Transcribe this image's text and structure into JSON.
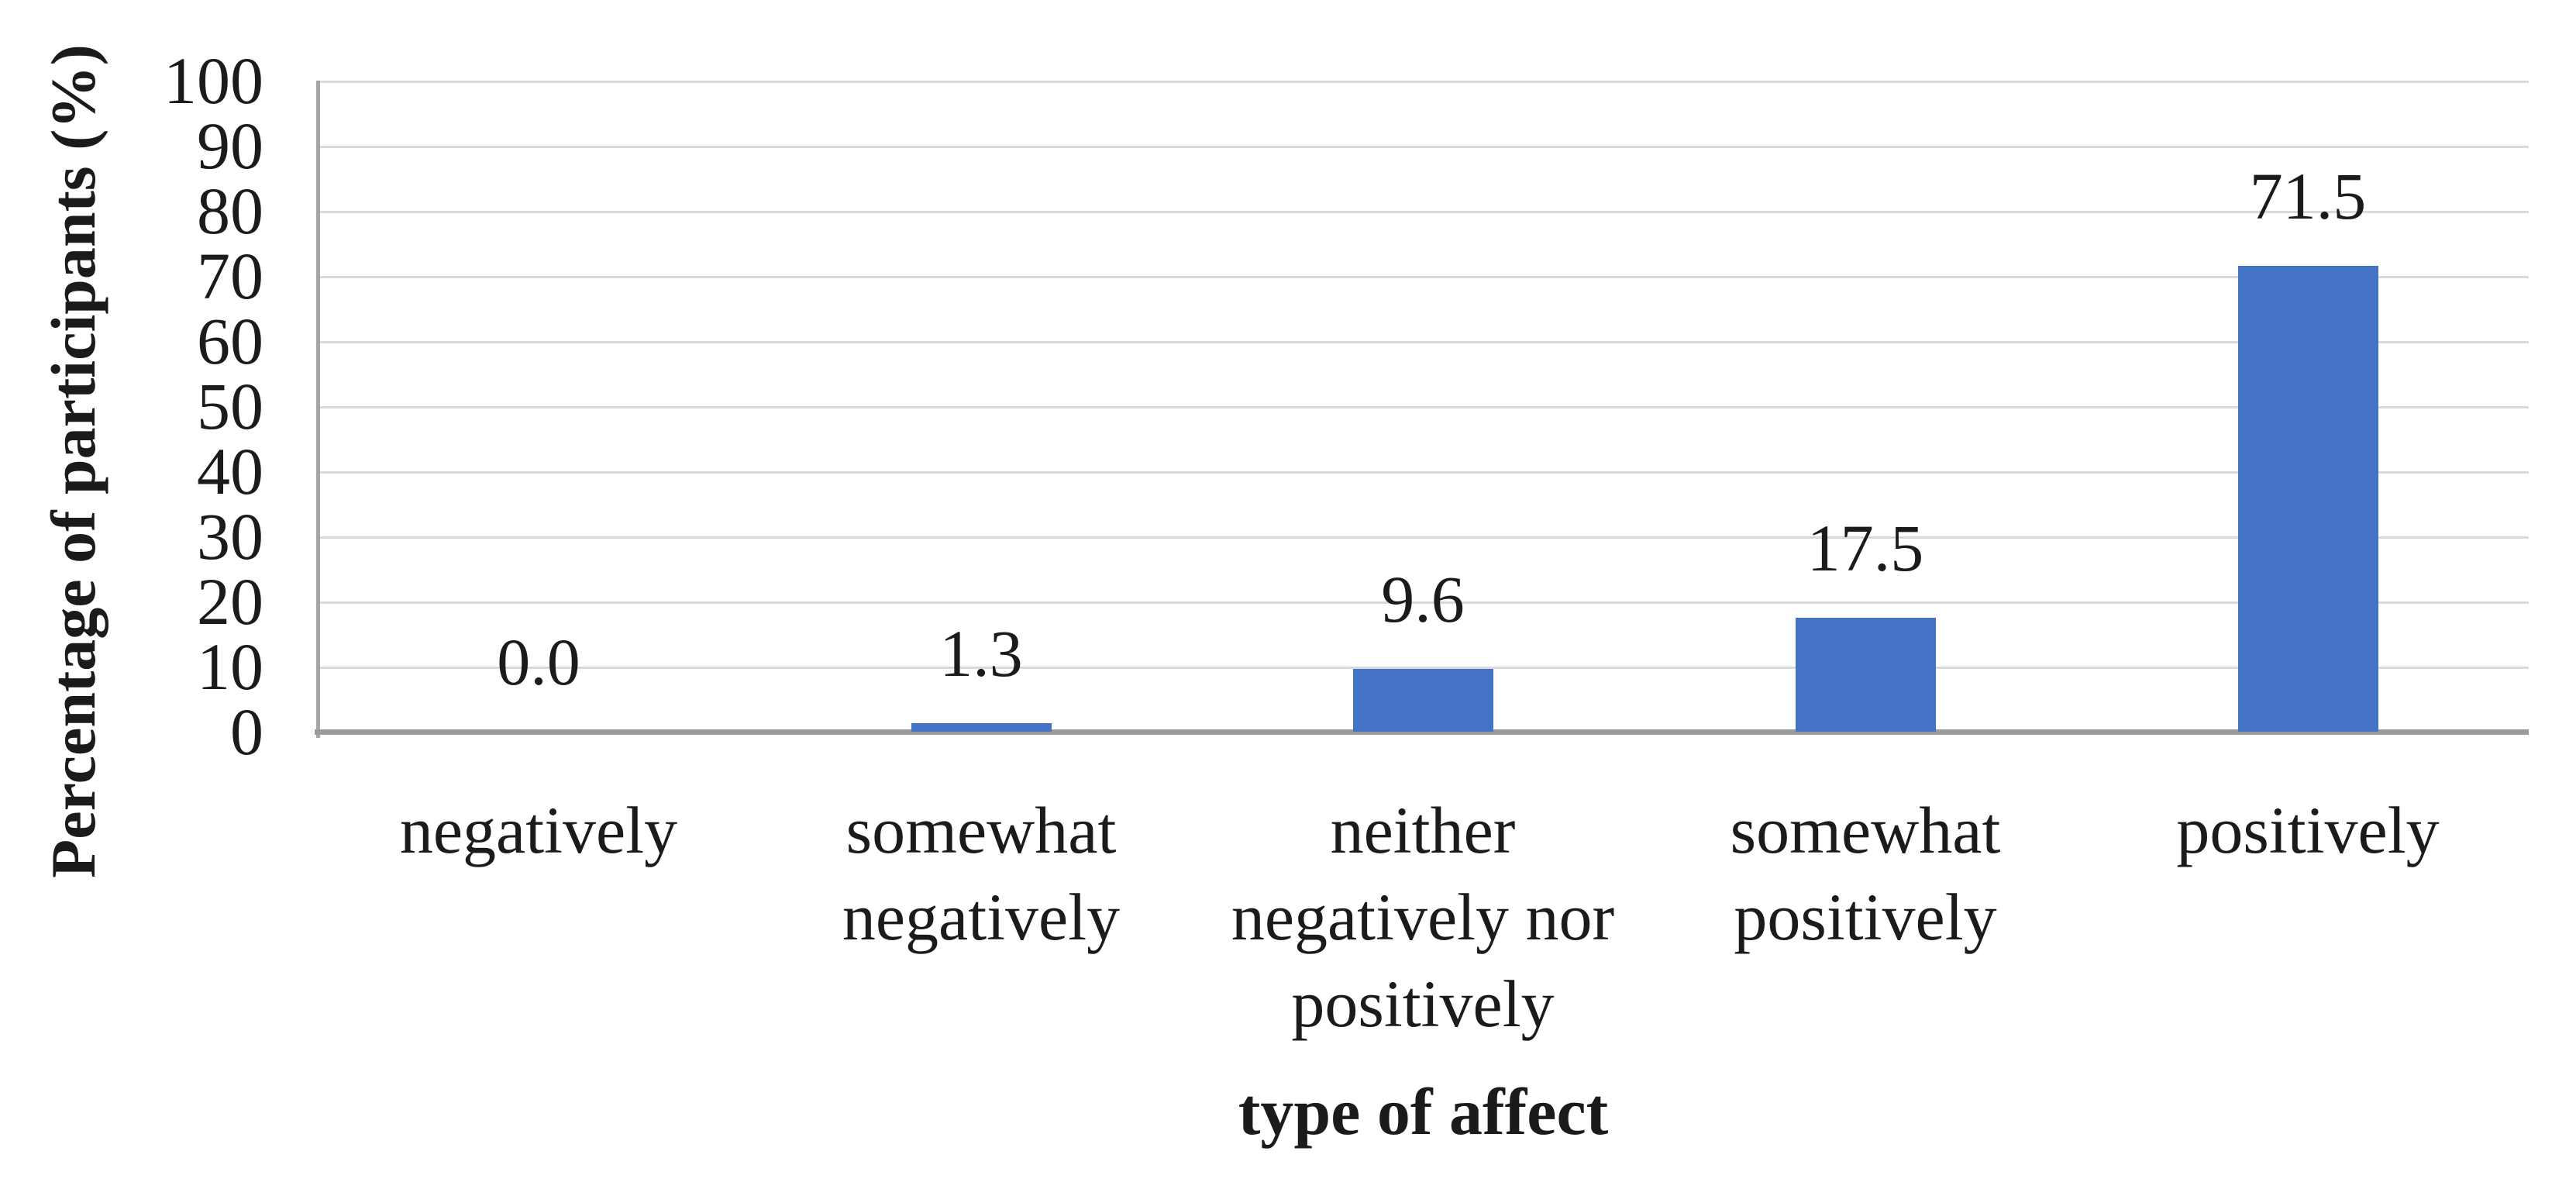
{
  "figure": {
    "background": "#ffffff"
  },
  "chart_data": {
    "type": "bar",
    "title": "",
    "xlabel": "type of affect",
    "ylabel": "Percentage of participants (%)",
    "ylim": [
      0,
      100
    ],
    "ytick_step": 10,
    "yticks": [
      "100",
      "90",
      "80",
      "70",
      "60",
      "50",
      "40",
      "30",
      "20",
      "10",
      "0"
    ],
    "grid": true,
    "legend_position": "none",
    "bar_color": "#4472C4",
    "gridline_color": "#D9D9D9",
    "axis_line_color": "#A6A6A6",
    "text_color": "#1B1B1B",
    "values": [
      0.0,
      1.3,
      9.6,
      17.5,
      71.5
    ],
    "categories": [
      {
        "label": "negatively",
        "lines": [
          "negatively"
        ],
        "value": 0.0,
        "value_label": "0.0"
      },
      {
        "label": "somewhat negatively",
        "lines": [
          "somewhat",
          "negatively"
        ],
        "value": 1.3,
        "value_label": "1.3"
      },
      {
        "label": "neither negatively nor positively",
        "lines": [
          "neither",
          "negatively nor",
          "positively"
        ],
        "value": 9.6,
        "value_label": "9.6"
      },
      {
        "label": "somewhat positively",
        "lines": [
          "somewhat",
          "positively"
        ],
        "value": 17.5,
        "value_label": "17.5"
      },
      {
        "label": "positively",
        "lines": [
          "positively"
        ],
        "value": 71.5,
        "value_label": "71.5"
      }
    ]
  }
}
